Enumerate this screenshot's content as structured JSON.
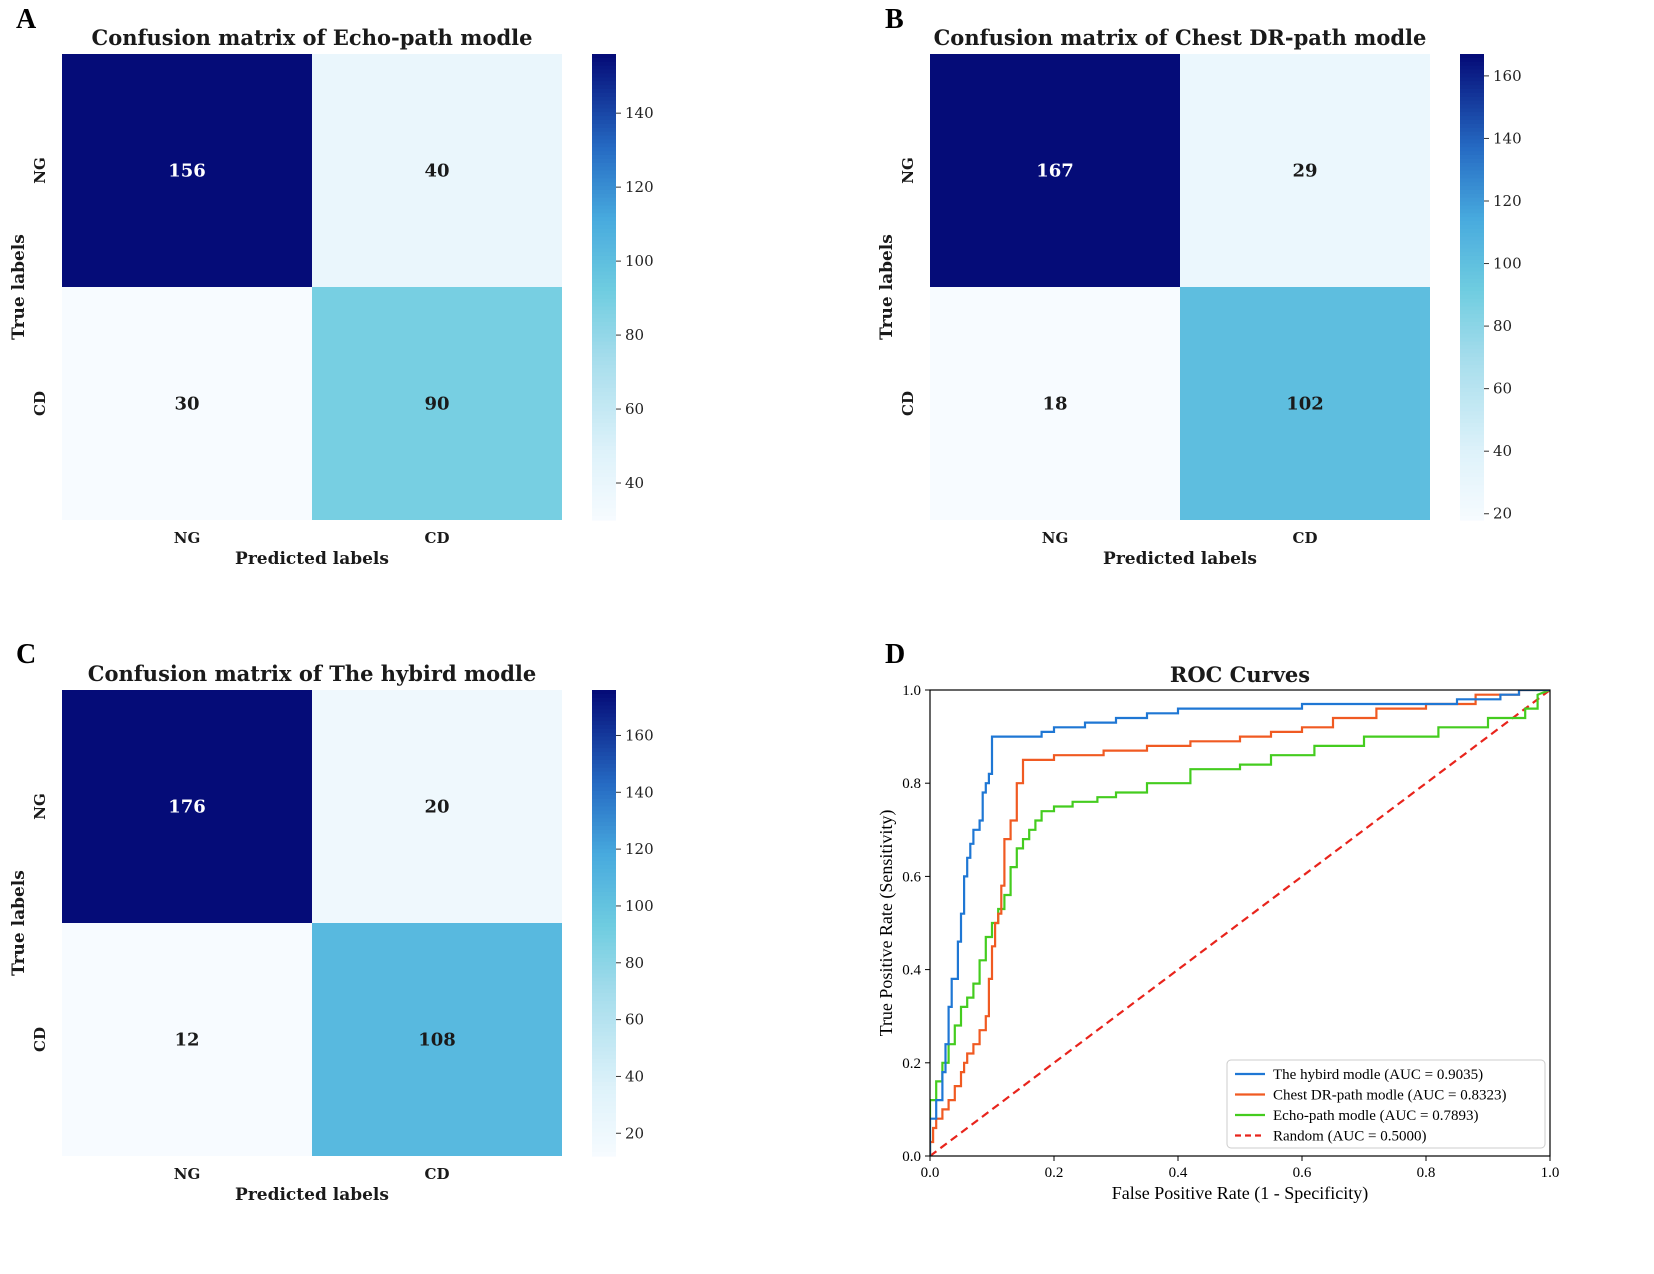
{
  "chart_data": [
    {
      "panel": "A",
      "type": "heatmap",
      "title": "Confusion matrix of Echo-path modle",
      "xlabel": "Predicted labels",
      "ylabel": "True labels",
      "x_categories": [
        "NG",
        "CD"
      ],
      "y_categories": [
        "NG",
        "CD"
      ],
      "values": [
        [
          156,
          40
        ],
        [
          30,
          90
        ]
      ],
      "colorbar_range": [
        30,
        156
      ],
      "colorbar_ticks": [
        40,
        60,
        80,
        100,
        120,
        140
      ],
      "colormap": "Blues-to-navy"
    },
    {
      "panel": "B",
      "type": "heatmap",
      "title": "Confusion matrix of Chest DR-path modle",
      "xlabel": "Predicted labels",
      "ylabel": "True labels",
      "x_categories": [
        "NG",
        "CD"
      ],
      "y_categories": [
        "NG",
        "CD"
      ],
      "values": [
        [
          167,
          29
        ],
        [
          18,
          102
        ]
      ],
      "colorbar_range": [
        18,
        167
      ],
      "colorbar_ticks": [
        20,
        40,
        60,
        80,
        100,
        120,
        140,
        160
      ],
      "colormap": "Blues-to-navy"
    },
    {
      "panel": "C",
      "type": "heatmap",
      "title": "Confusion matrix of The hybird modle",
      "xlabel": "Predicted labels",
      "ylabel": "True labels",
      "x_categories": [
        "NG",
        "CD"
      ],
      "y_categories": [
        "NG",
        "CD"
      ],
      "values": [
        [
          176,
          20
        ],
        [
          12,
          108
        ]
      ],
      "colorbar_range": [
        12,
        176
      ],
      "colorbar_ticks": [
        20,
        40,
        60,
        80,
        100,
        120,
        140,
        160
      ],
      "colormap": "Blues-to-navy"
    },
    {
      "panel": "D",
      "type": "line",
      "title": "ROC Curves",
      "xlabel": "False Positive Rate (1 - Specificity)",
      "ylabel": "True Positive Rate (Sensitivity)",
      "xlim": [
        0,
        1
      ],
      "ylim": [
        0,
        1
      ],
      "xticks": [
        "0.0",
        "0.2",
        "0.4",
        "0.6",
        "0.8",
        "1.0"
      ],
      "yticks": [
        "0.0",
        "0.2",
        "0.4",
        "0.6",
        "0.8",
        "1.0"
      ],
      "legend_position": "lower-right",
      "series": [
        {
          "name": "The hybird modle (AUC = 0.9035)",
          "color": "#1f77d4",
          "dash": "solid",
          "x": [
            0,
            0,
            0.01,
            0.01,
            0.02,
            0.02,
            0.025,
            0.025,
            0.03,
            0.03,
            0.035,
            0.035,
            0.045,
            0.045,
            0.05,
            0.05,
            0.055,
            0.055,
            0.06,
            0.06,
            0.065,
            0.065,
            0.07,
            0.07,
            0.08,
            0.08,
            0.085,
            0.085,
            0.09,
            0.09,
            0.095,
            0.095,
            0.1,
            0.1,
            0.11,
            0.18,
            0.18,
            0.2,
            0.2,
            0.25,
            0.25,
            0.3,
            0.3,
            0.35,
            0.35,
            0.4,
            0.4,
            0.6,
            0.6,
            0.85,
            0.85,
            0.92,
            0.92,
            0.95,
            0.95,
            0.98,
            0.98,
            1.0
          ],
          "y": [
            0,
            0.08,
            0.08,
            0.12,
            0.12,
            0.18,
            0.18,
            0.24,
            0.24,
            0.32,
            0.32,
            0.38,
            0.38,
            0.46,
            0.46,
            0.52,
            0.52,
            0.6,
            0.6,
            0.64,
            0.64,
            0.67,
            0.67,
            0.7,
            0.7,
            0.72,
            0.72,
            0.78,
            0.78,
            0.8,
            0.8,
            0.82,
            0.82,
            0.9,
            0.9,
            0.9,
            0.91,
            0.91,
            0.92,
            0.92,
            0.93,
            0.93,
            0.94,
            0.94,
            0.95,
            0.95,
            0.96,
            0.96,
            0.97,
            0.97,
            0.98,
            0.98,
            0.99,
            0.99,
            1.0,
            1.0,
            1.0,
            1.0
          ]
        },
        {
          "name": "Chest DR-path modle (AUC = 0.8323)",
          "color": "#f05a22",
          "dash": "solid",
          "x": [
            0,
            0,
            0.005,
            0.005,
            0.01,
            0.01,
            0.02,
            0.02,
            0.03,
            0.03,
            0.04,
            0.04,
            0.05,
            0.05,
            0.055,
            0.055,
            0.06,
            0.06,
            0.07,
            0.07,
            0.08,
            0.08,
            0.09,
            0.09,
            0.095,
            0.095,
            0.1,
            0.1,
            0.105,
            0.105,
            0.11,
            0.11,
            0.115,
            0.115,
            0.12,
            0.12,
            0.13,
            0.13,
            0.14,
            0.14,
            0.15,
            0.15,
            0.2,
            0.2,
            0.28,
            0.28,
            0.35,
            0.35,
            0.42,
            0.42,
            0.5,
            0.5,
            0.55,
            0.55,
            0.6,
            0.6,
            0.65,
            0.65,
            0.72,
            0.72,
            0.8,
            0.8,
            0.88,
            0.88,
            0.95,
            0.95,
            1.0
          ],
          "y": [
            0,
            0.03,
            0.03,
            0.06,
            0.06,
            0.08,
            0.08,
            0.1,
            0.1,
            0.12,
            0.12,
            0.15,
            0.15,
            0.18,
            0.18,
            0.2,
            0.2,
            0.22,
            0.22,
            0.24,
            0.24,
            0.27,
            0.27,
            0.3,
            0.3,
            0.38,
            0.38,
            0.45,
            0.45,
            0.5,
            0.5,
            0.52,
            0.52,
            0.58,
            0.58,
            0.68,
            0.68,
            0.72,
            0.72,
            0.8,
            0.8,
            0.85,
            0.85,
            0.86,
            0.86,
            0.87,
            0.87,
            0.88,
            0.88,
            0.89,
            0.89,
            0.9,
            0.9,
            0.91,
            0.91,
            0.92,
            0.92,
            0.94,
            0.94,
            0.96,
            0.96,
            0.97,
            0.97,
            0.99,
            0.99,
            1.0,
            1.0
          ]
        },
        {
          "name": "Echo-path modle (AUC = 0.7893)",
          "color": "#44cc1f",
          "dash": "solid",
          "x": [
            0,
            0,
            0.01,
            0.01,
            0.02,
            0.02,
            0.03,
            0.03,
            0.04,
            0.04,
            0.05,
            0.05,
            0.06,
            0.06,
            0.07,
            0.07,
            0.08,
            0.08,
            0.09,
            0.09,
            0.1,
            0.1,
            0.11,
            0.11,
            0.12,
            0.12,
            0.13,
            0.13,
            0.14,
            0.14,
            0.15,
            0.15,
            0.16,
            0.16,
            0.17,
            0.17,
            0.18,
            0.18,
            0.2,
            0.2,
            0.23,
            0.23,
            0.27,
            0.27,
            0.3,
            0.3,
            0.35,
            0.35,
            0.42,
            0.42,
            0.5,
            0.5,
            0.55,
            0.55,
            0.62,
            0.62,
            0.7,
            0.7,
            0.82,
            0.82,
            0.9,
            0.9,
            0.96,
            0.96,
            0.98,
            0.98,
            1.0
          ],
          "y": [
            0,
            0.12,
            0.12,
            0.16,
            0.16,
            0.2,
            0.2,
            0.24,
            0.24,
            0.28,
            0.28,
            0.32,
            0.32,
            0.34,
            0.34,
            0.37,
            0.37,
            0.42,
            0.42,
            0.47,
            0.47,
            0.5,
            0.5,
            0.53,
            0.53,
            0.56,
            0.56,
            0.62,
            0.62,
            0.66,
            0.66,
            0.68,
            0.68,
            0.7,
            0.7,
            0.72,
            0.72,
            0.74,
            0.74,
            0.75,
            0.75,
            0.76,
            0.76,
            0.77,
            0.77,
            0.78,
            0.78,
            0.8,
            0.8,
            0.83,
            0.83,
            0.84,
            0.84,
            0.86,
            0.86,
            0.88,
            0.88,
            0.9,
            0.9,
            0.92,
            0.92,
            0.94,
            0.94,
            0.96,
            0.96,
            0.99,
            1.0
          ]
        },
        {
          "name": "Random (AUC = 0.5000)",
          "color": "#e8241c",
          "dash": "dashed",
          "x": [
            0,
            1
          ],
          "y": [
            0,
            1
          ]
        }
      ]
    }
  ]
}
